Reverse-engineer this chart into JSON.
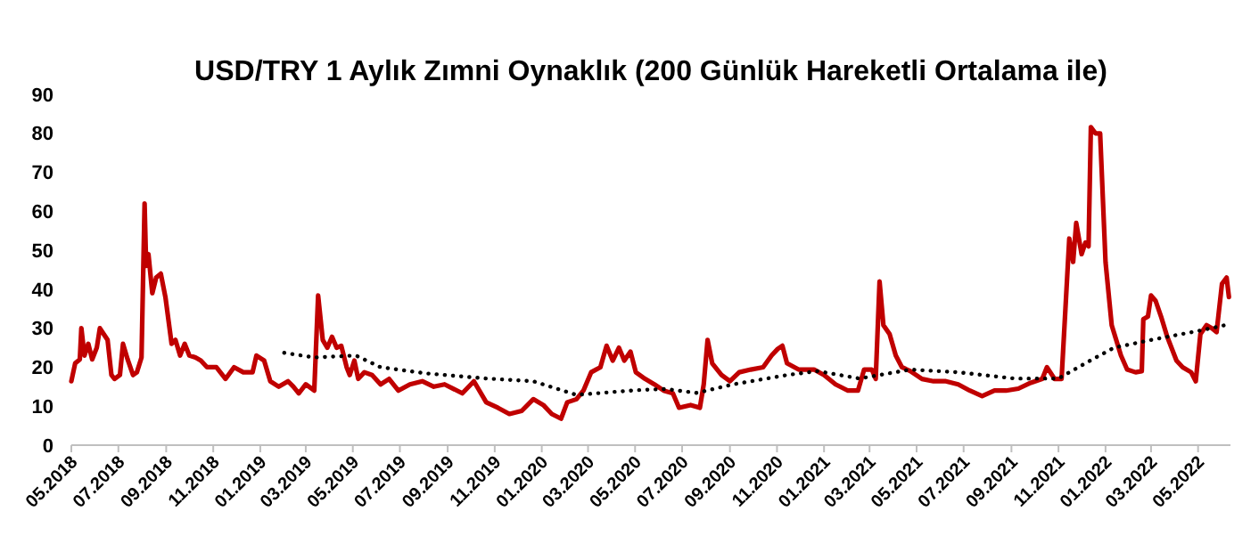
{
  "chart_data": {
    "type": "line",
    "title": "USD/TRY 1 Aylık Zımni Oynaklık (200 Günlük Hareketli Ortalama ile)",
    "xlim": [
      "2018-05-01",
      "2022-06-12"
    ],
    "xticks": [
      {
        "value": "2018-05-01",
        "label": "05.2018"
      },
      {
        "value": "2018-07-01",
        "label": "07.2018"
      },
      {
        "value": "2018-09-01",
        "label": "09.2018"
      },
      {
        "value": "2018-11-01",
        "label": "11.2018"
      },
      {
        "value": "2019-01-01",
        "label": "01.2019"
      },
      {
        "value": "2019-03-01",
        "label": "03.2019"
      },
      {
        "value": "2019-05-01",
        "label": "05.2019"
      },
      {
        "value": "2019-07-01",
        "label": "07.2019"
      },
      {
        "value": "2019-09-01",
        "label": "09.2019"
      },
      {
        "value": "2019-11-01",
        "label": "11.2019"
      },
      {
        "value": "2020-01-01",
        "label": "01.2020"
      },
      {
        "value": "2020-03-01",
        "label": "03.2020"
      },
      {
        "value": "2020-05-01",
        "label": "05.2020"
      },
      {
        "value": "2020-07-01",
        "label": "07.2020"
      },
      {
        "value": "2020-09-01",
        "label": "09.2020"
      },
      {
        "value": "2020-11-01",
        "label": "11.2020"
      },
      {
        "value": "2021-01-01",
        "label": "01.2021"
      },
      {
        "value": "2021-03-01",
        "label": "03.2021"
      },
      {
        "value": "2021-05-01",
        "label": "05.2021"
      },
      {
        "value": "2021-07-01",
        "label": "07.2021"
      },
      {
        "value": "2021-09-01",
        "label": "09.2021"
      },
      {
        "value": "2021-11-01",
        "label": "11.2021"
      },
      {
        "value": "2022-01-01",
        "label": "01.2022"
      },
      {
        "value": "2022-03-01",
        "label": "03.2022"
      },
      {
        "value": "2022-05-01",
        "label": "05.2022"
      }
    ],
    "ylim": [
      0,
      90
    ],
    "yticks": [
      0,
      10,
      20,
      30,
      40,
      50,
      60,
      70,
      80,
      90
    ],
    "series": [
      {
        "color": "#c00000",
        "line_style": "solid",
        "x": [
          "2018-05-01",
          "2018-05-06",
          "2018-05-12",
          "2018-05-14",
          "2018-05-18",
          "2018-05-23",
          "2018-05-28",
          "2018-06-03",
          "2018-06-07",
          "2018-06-12",
          "2018-06-17",
          "2018-06-22",
          "2018-06-26",
          "2018-07-03",
          "2018-07-07",
          "2018-07-13",
          "2018-07-20",
          "2018-07-25",
          "2018-07-31",
          "2018-08-04",
          "2018-08-06",
          "2018-08-09",
          "2018-08-14",
          "2018-08-19",
          "2018-08-25",
          "2018-08-31",
          "2018-09-08",
          "2018-09-13",
          "2018-09-19",
          "2018-09-25",
          "2018-10-01",
          "2018-10-09",
          "2018-10-16",
          "2018-10-24",
          "2018-11-05",
          "2018-11-17",
          "2018-11-28",
          "2018-12-10",
          "2018-12-22",
          "2018-12-27",
          "2019-01-06",
          "2019-01-14",
          "2019-01-25",
          "2019-02-06",
          "2019-02-13",
          "2019-02-20",
          "2019-03-01",
          "2019-03-12",
          "2019-03-17",
          "2019-03-23",
          "2019-03-29",
          "2019-04-04",
          "2019-04-10",
          "2019-04-16",
          "2019-04-23",
          "2019-04-27",
          "2019-05-03",
          "2019-05-08",
          "2019-05-16",
          "2019-05-26",
          "2019-06-06",
          "2019-06-17",
          "2019-06-29",
          "2019-07-14",
          "2019-07-30",
          "2019-08-14",
          "2019-08-28",
          "2019-09-20",
          "2019-10-05",
          "2019-10-21",
          "2019-11-05",
          "2019-11-20",
          "2019-12-06",
          "2019-12-21",
          "2020-01-03",
          "2020-01-14",
          "2020-01-26",
          "2020-02-03",
          "2020-02-15",
          "2020-02-24",
          "2020-03-05",
          "2020-03-17",
          "2020-03-25",
          "2020-04-02",
          "2020-04-10",
          "2020-04-17",
          "2020-04-25",
          "2020-05-02",
          "2020-05-14",
          "2020-05-26",
          "2020-06-07",
          "2020-06-19",
          "2020-06-27",
          "2020-07-12",
          "2020-07-24",
          "2020-07-29",
          "2020-08-03",
          "2020-08-09",
          "2020-08-21",
          "2020-09-01",
          "2020-09-13",
          "2020-09-28",
          "2020-10-14",
          "2020-10-25",
          "2020-11-02",
          "2020-11-08",
          "2020-11-14",
          "2020-11-29",
          "2020-12-19",
          "2021-01-01",
          "2021-01-16",
          "2021-02-01",
          "2021-02-14",
          "2021-02-22",
          "2021-03-04",
          "2021-03-09",
          "2021-03-14",
          "2021-03-19",
          "2021-03-27",
          "2021-04-04",
          "2021-04-12",
          "2021-04-23",
          "2021-05-08",
          "2021-05-23",
          "2021-06-08",
          "2021-06-24",
          "2021-07-09",
          "2021-07-25",
          "2021-08-10",
          "2021-08-25",
          "2021-09-10",
          "2021-09-26",
          "2021-10-11",
          "2021-10-17",
          "2021-10-27",
          "2021-11-05",
          "2021-11-10",
          "2021-11-15",
          "2021-11-20",
          "2021-11-24",
          "2021-12-01",
          "2021-12-06",
          "2021-12-10",
          "2021-12-13",
          "2021-12-19",
          "2021-12-25",
          "2022-01-01",
          "2022-01-09",
          "2022-01-21",
          "2022-01-29",
          "2022-02-09",
          "2022-02-17",
          "2022-02-19",
          "2022-02-25",
          "2022-03-01",
          "2022-03-07",
          "2022-03-14",
          "2022-03-22",
          "2022-04-03",
          "2022-04-11",
          "2022-04-22",
          "2022-04-28",
          "2022-05-04",
          "2022-05-12",
          "2022-05-19",
          "2022-05-25",
          "2022-06-01",
          "2022-06-07",
          "2022-06-10"
        ],
        "values": [
          16.4,
          21,
          22,
          30,
          23,
          26,
          22,
          25,
          30,
          28.5,
          27,
          18,
          17,
          18,
          26,
          22,
          18,
          18.7,
          22.5,
          62,
          46,
          49,
          39,
          43,
          44,
          38,
          26,
          27,
          23,
          26,
          23,
          22.5,
          21.7,
          20,
          20,
          17,
          20,
          18.7,
          18.7,
          23,
          21.7,
          16.4,
          15,
          16.4,
          15,
          13.3,
          15.6,
          14,
          38.4,
          27,
          25,
          27.8,
          25,
          25.5,
          20,
          18,
          21.7,
          17,
          18.7,
          18,
          15.6,
          17,
          14,
          15.6,
          16.4,
          15,
          15.6,
          13.3,
          16.4,
          11,
          9.6,
          8,
          8.8,
          11.8,
          10.3,
          8,
          6.8,
          11,
          11.8,
          14,
          18.7,
          20,
          25.5,
          21.7,
          25,
          21.7,
          24,
          18.7,
          17,
          15.6,
          14,
          13.3,
          9.6,
          10.3,
          9.6,
          15.6,
          27,
          21,
          18,
          16.4,
          18.7,
          19.4,
          20,
          23,
          24.7,
          25.5,
          21,
          19.4,
          19.4,
          18,
          15.6,
          14,
          14,
          19.4,
          19.4,
          17,
          42,
          30.8,
          28.5,
          23,
          20,
          19,
          17,
          16.4,
          16.4,
          15.6,
          14,
          12.6,
          14,
          14,
          14.5,
          16,
          17,
          20,
          17,
          17,
          35,
          53,
          47,
          57,
          49,
          52,
          51,
          81.6,
          80,
          80,
          47,
          30.8,
          23,
          19.4,
          18.7,
          19,
          32.3,
          33,
          38.4,
          37,
          33,
          27.8,
          21.7,
          20,
          18.7,
          16.4,
          28.5,
          30.8,
          30,
          29,
          41.4,
          43,
          38
        ]
      },
      {
        "color": "#000000",
        "line_style": "dotted",
        "x": [
          "2019-02-01",
          "2019-03-12",
          "2019-05-05",
          "2019-06-06",
          "2019-08-05",
          "2019-10-21",
          "2019-12-21",
          "2020-02-15",
          "2020-05-02",
          "2020-06-10",
          "2020-07-20",
          "2020-09-05",
          "2020-11-14",
          "2020-12-24",
          "2021-02-16",
          "2021-04-23",
          "2021-06-24",
          "2021-09-05",
          "2021-11-01",
          "2021-12-12",
          "2022-01-12",
          "2022-03-01",
          "2022-05-01",
          "2022-06-10"
        ],
        "values": [
          23.7,
          22.5,
          23,
          20,
          18.4,
          17.1,
          16.4,
          12.9,
          14.1,
          14.4,
          13.4,
          15.6,
          18,
          19,
          17.1,
          19.4,
          18.7,
          17.1,
          17.1,
          21.7,
          25,
          27,
          29.3,
          31
        ]
      }
    ]
  }
}
